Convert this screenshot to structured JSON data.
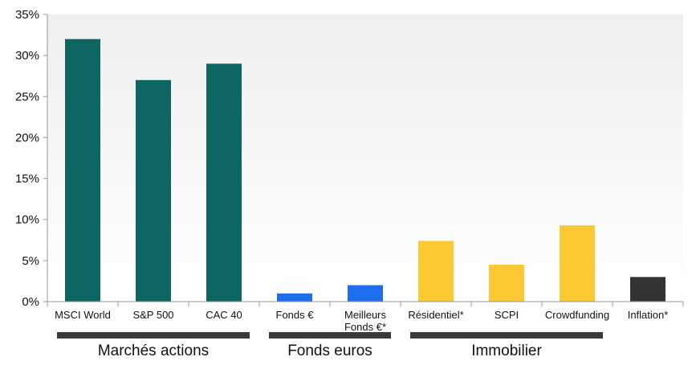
{
  "chart_data": {
    "type": "bar",
    "categories": [
      "MSCI World",
      "S&P 500",
      "CAC 40",
      "Fonds €",
      "Meilleurs Fonds €*",
      "Résidentiel*",
      "SCPI",
      "Crowdfunding",
      "Inflation*"
    ],
    "category_lines": [
      [
        "MSCI World"
      ],
      [
        "S&P 500"
      ],
      [
        "CAC 40"
      ],
      [
        "Fonds €"
      ],
      [
        "Meilleurs",
        "Fonds €*"
      ],
      [
        "Résidentiel*"
      ],
      [
        "SCPI"
      ],
      [
        "Crowdfunding"
      ],
      [
        "Inflation*"
      ]
    ],
    "values": [
      32,
      27,
      29,
      1,
      2,
      7.4,
      4.5,
      9.3,
      3
    ],
    "colors": [
      "#0d6662",
      "#0d6662",
      "#0d6662",
      "#1f6ef0",
      "#1f6ef0",
      "#fcc933",
      "#fcc933",
      "#fcc933",
      "#333333"
    ],
    "ylim": [
      0,
      35
    ],
    "yticks": [
      0,
      5,
      10,
      15,
      20,
      25,
      30,
      35
    ],
    "ytick_labels": [
      "0%",
      "5%",
      "10%",
      "15%",
      "20%",
      "25%",
      "30%",
      "35%"
    ],
    "grid": false,
    "groups": [
      {
        "label": "Marchés actions",
        "first": 0,
        "last": 2
      },
      {
        "label": "Fonds euros",
        "first": 3,
        "last": 4
      },
      {
        "label": "Immobilier",
        "first": 5,
        "last": 7
      }
    ],
    "title": "",
    "xlabel": "",
    "ylabel": ""
  }
}
